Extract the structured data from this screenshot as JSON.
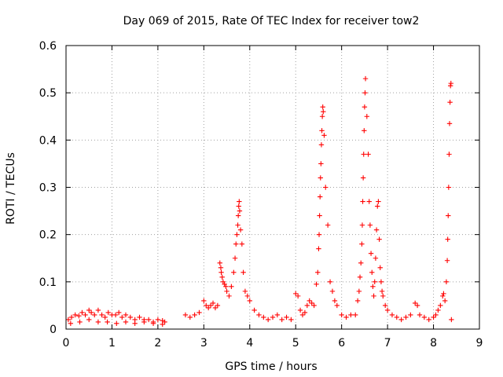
{
  "chart_data": {
    "type": "scatter",
    "title": "Day 069 of 2015, Rate Of TEC Index for receiver tow2",
    "xlabel": "GPS time / hours",
    "ylabel": "ROTI / TECUs",
    "xlim": [
      0,
      9
    ],
    "ylim": [
      0,
      0.6
    ],
    "xticks": [
      "0",
      "1",
      "2",
      "3",
      "4",
      "5",
      "6",
      "7",
      "8",
      "9"
    ],
    "yticks": [
      "0",
      "0.1",
      "0.2",
      "0.3",
      "0.4",
      "0.5",
      "0.6"
    ],
    "grid": true,
    "marker": "+",
    "color": "#ff0000",
    "series": [
      {
        "name": "ROTI",
        "x": [
          0.05,
          0.12,
          0.2,
          0.28,
          0.35,
          0.42,
          0.5,
          0.55,
          0.62,
          0.7,
          0.78,
          0.85,
          0.92,
          1.0,
          1.08,
          1.15,
          1.22,
          1.3,
          1.4,
          1.5,
          1.6,
          1.7,
          1.8,
          1.9,
          2.0,
          2.1,
          2.15,
          0.1,
          0.3,
          0.5,
          0.7,
          0.9,
          1.1,
          1.3,
          1.5,
          1.7,
          1.9,
          2.1,
          2.6,
          2.7,
          2.8,
          2.9,
          3.0,
          3.05,
          3.1,
          3.15,
          3.2,
          3.25,
          3.3,
          3.35,
          3.37,
          3.38,
          3.4,
          3.42,
          3.45,
          3.48,
          3.5,
          3.55,
          3.6,
          3.65,
          3.68,
          3.7,
          3.72,
          3.74,
          3.75,
          3.76,
          3.77,
          3.78,
          3.8,
          3.83,
          3.86,
          3.9,
          3.95,
          4.0,
          4.1,
          4.2,
          4.3,
          4.4,
          4.5,
          4.6,
          4.7,
          4.8,
          4.9,
          5.0,
          5.05,
          5.1,
          5.15,
          5.2,
          5.25,
          5.3,
          5.35,
          5.4,
          5.45,
          5.48,
          5.5,
          5.51,
          5.52,
          5.53,
          5.54,
          5.55,
          5.56,
          5.57,
          5.58,
          5.59,
          5.6,
          5.62,
          5.65,
          5.7,
          5.75,
          5.8,
          5.85,
          5.9,
          6.0,
          6.1,
          6.2,
          6.3,
          6.35,
          6.38,
          6.4,
          6.42,
          6.44,
          6.45,
          6.46,
          6.47,
          6.48,
          6.49,
          6.5,
          6.51,
          6.52,
          6.55,
          6.58,
          6.6,
          6.62,
          6.64,
          6.66,
          6.68,
          6.7,
          6.72,
          6.74,
          6.76,
          6.78,
          6.8,
          6.82,
          6.84,
          6.86,
          6.88,
          6.9,
          6.95,
          7.0,
          7.1,
          7.2,
          7.3,
          7.4,
          7.5,
          7.6,
          7.65,
          7.7,
          7.8,
          7.9,
          8.0,
          8.05,
          8.1,
          8.15,
          8.2,
          8.22,
          8.25,
          8.28,
          8.3,
          8.31,
          8.32,
          8.33,
          8.34,
          8.35,
          8.36,
          8.37,
          8.38,
          8.39
        ],
        "y": [
          0.02,
          0.025,
          0.03,
          0.028,
          0.035,
          0.03,
          0.04,
          0.035,
          0.03,
          0.04,
          0.03,
          0.025,
          0.035,
          0.03,
          0.03,
          0.035,
          0.025,
          0.03,
          0.025,
          0.02,
          0.025,
          0.02,
          0.02,
          0.015,
          0.02,
          0.018,
          0.015,
          0.012,
          0.015,
          0.02,
          0.015,
          0.015,
          0.012,
          0.015,
          0.012,
          0.015,
          0.012,
          0.01,
          0.03,
          0.025,
          0.03,
          0.035,
          0.06,
          0.05,
          0.045,
          0.05,
          0.055,
          0.045,
          0.05,
          0.14,
          0.13,
          0.12,
          0.11,
          0.1,
          0.095,
          0.09,
          0.08,
          0.07,
          0.09,
          0.12,
          0.15,
          0.18,
          0.2,
          0.22,
          0.24,
          0.26,
          0.27,
          0.25,
          0.21,
          0.18,
          0.12,
          0.08,
          0.07,
          0.06,
          0.04,
          0.03,
          0.025,
          0.02,
          0.025,
          0.03,
          0.02,
          0.025,
          0.02,
          0.075,
          0.07,
          0.04,
          0.03,
          0.035,
          0.05,
          0.06,
          0.055,
          0.05,
          0.095,
          0.12,
          0.17,
          0.2,
          0.24,
          0.28,
          0.32,
          0.35,
          0.39,
          0.42,
          0.45,
          0.47,
          0.46,
          0.41,
          0.3,
          0.22,
          0.1,
          0.08,
          0.06,
          0.05,
          0.03,
          0.025,
          0.03,
          0.03,
          0.06,
          0.08,
          0.11,
          0.14,
          0.18,
          0.22,
          0.27,
          0.32,
          0.37,
          0.42,
          0.47,
          0.5,
          0.53,
          0.45,
          0.37,
          0.27,
          0.22,
          0.16,
          0.12,
          0.09,
          0.07,
          0.1,
          0.15,
          0.21,
          0.26,
          0.27,
          0.19,
          0.13,
          0.1,
          0.08,
          0.07,
          0.05,
          0.04,
          0.03,
          0.025,
          0.02,
          0.025,
          0.03,
          0.055,
          0.05,
          0.03,
          0.025,
          0.02,
          0.025,
          0.03,
          0.04,
          0.05,
          0.07,
          0.075,
          0.06,
          0.1,
          0.145,
          0.19,
          0.24,
          0.3,
          0.37,
          0.435,
          0.48,
          0.515,
          0.52,
          0.02
        ]
      }
    ]
  }
}
